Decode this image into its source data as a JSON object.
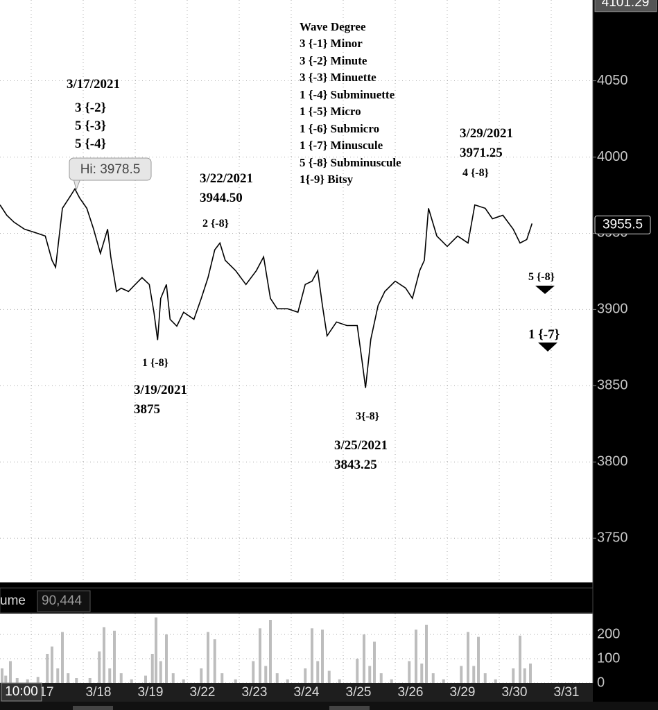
{
  "chart_data": [
    {
      "type": "line",
      "x": [
        -0.6,
        -0.47,
        -0.33,
        -0.13,
        0.07,
        0.27,
        0.4,
        0.47,
        0.6,
        0.73,
        0.84,
        0.93,
        1.07,
        1.2,
        1.33,
        1.47,
        1.53,
        1.64,
        1.73,
        1.87,
        2,
        2.13,
        2.27,
        2.36,
        2.43,
        2.49,
        2.6,
        2.67,
        2.8,
        2.93,
        3.13,
        3.27,
        3.4,
        3.53,
        3.63,
        3.73,
        3.93,
        4.13,
        4.33,
        4.47,
        4.6,
        4.73,
        4.93,
        5.13,
        5.27,
        5.4,
        5.51,
        5.6,
        5.69,
        5.87,
        6.07,
        6.27,
        6.36,
        6.43,
        6.53,
        6.67,
        6.8,
        7,
        7.2,
        7.33,
        7.47,
        7.56,
        7.64,
        7.8,
        8,
        8.2,
        8.4,
        8.53,
        8.73,
        8.87,
        9.07,
        9.27,
        9.4,
        9.53,
        9.63
      ],
      "values": [
        3968.6,
        3961.8,
        3957.3,
        3952.7,
        3950.5,
        3948.2,
        3932.3,
        3927.7,
        3966.4,
        3973.2,
        3979.1,
        3973.2,
        3966.4,
        3952.7,
        3936.8,
        3952.7,
        3934.5,
        3911.8,
        3914,
        3911.8,
        3916.4,
        3920.9,
        3916.4,
        3898.2,
        3880,
        3907.3,
        3916.4,
        3893.6,
        3889.1,
        3898.2,
        3893.6,
        3907.3,
        3920.9,
        3939.1,
        3943.6,
        3932.3,
        3925.5,
        3916.4,
        3925.5,
        3934.5,
        3907.3,
        3900.5,
        3900.5,
        3898.2,
        3916.4,
        3918.6,
        3925.5,
        3902.7,
        3882.7,
        3891.8,
        3889.5,
        3889.5,
        3866.8,
        3848.6,
        3880.5,
        3902.7,
        3911.8,
        3918.6,
        3914.1,
        3907.3,
        3925.5,
        3932.3,
        3966.4,
        3948.2,
        3941.4,
        3948.2,
        3943.6,
        3968.6,
        3966.4,
        3959.5,
        3961.8,
        3952.7,
        3943.6,
        3945.9,
        3956.4
      ],
      "color": "#000000",
      "xlim": [
        -0.6,
        10.8
      ],
      "ylim": [
        3721,
        4103
      ],
      "yticks": [
        3750,
        3800,
        3850,
        3900,
        3950,
        4000,
        4050
      ],
      "grid": true,
      "last_price": 3955.5,
      "scale_top": 4101.29,
      "high_marker": {
        "value": 3978.5,
        "label": "Hi: 3978.5"
      },
      "annotations": [
        "3/17/2021",
        "3 {-2}",
        "5 {-3}",
        "5 {-4}",
        "3/22/2021",
        "3944.50",
        "2 {-8}",
        "1 {-8}",
        "3/19/2021",
        "3875",
        "Wave Degree",
        "3 {-1} Minor",
        "3 {-2} Minute",
        "3 {-3} Minuette",
        "1 {-4} Subminuette",
        "1 {-5} Micro",
        "1 {-6} Submicro",
        "1 {-7} Minuscule",
        "5 {-8} Subminuscule",
        "1{-9} Bitsy",
        "3/29/2021",
        "3971.25",
        "4 {-8}",
        "3{-8}",
        "3/25/2021",
        "3843.25",
        "5 {-8}",
        "1 {-7}"
      ]
    },
    {
      "type": "bar",
      "title": "ume",
      "last_value": "90,444",
      "x": [
        -0.56,
        -0.49,
        -0.4,
        -0.27,
        -0.07,
        0.13,
        0.31,
        0.4,
        0.51,
        0.6,
        0.71,
        0.87,
        1.13,
        1.31,
        1.4,
        1.51,
        1.6,
        1.73,
        1.93,
        2.2,
        2.33,
        2.4,
        2.49,
        2.6,
        2.73,
        2.93,
        3.27,
        3.4,
        3.53,
        3.67,
        3.93,
        4.27,
        4.4,
        4.51,
        4.6,
        4.73,
        4.93,
        5.27,
        5.4,
        5.51,
        5.6,
        5.73,
        5.93,
        6.27,
        6.4,
        6.51,
        6.6,
        6.73,
        6.93,
        7.27,
        7.4,
        7.51,
        7.6,
        7.73,
        7.93,
        8.27,
        8.4,
        8.51,
        8.6,
        8.73,
        8.93,
        9.27,
        9.4,
        9.49,
        9.6
      ],
      "values": [
        60,
        30,
        90,
        20,
        15,
        25,
        120,
        150,
        60,
        210,
        40,
        20,
        20,
        130,
        230,
        60,
        215,
        40,
        15,
        30,
        120,
        270,
        90,
        200,
        40,
        15,
        60,
        210,
        180,
        40,
        15,
        90,
        225,
        70,
        260,
        40,
        15,
        60,
        225,
        90,
        220,
        50,
        15,
        100,
        200,
        70,
        170,
        40,
        15,
        90,
        220,
        80,
        240,
        40,
        15,
        70,
        210,
        70,
        190,
        40,
        15,
        60,
        195,
        60,
        80
      ],
      "color": "#bdbdbd",
      "xlim": [
        -0.6,
        10.8
      ],
      "xticks": [
        {
          "value": 0,
          "label": "17"
        },
        {
          "value": 1,
          "label": "3/18"
        },
        {
          "value": 2,
          "label": "3/19"
        },
        {
          "value": 3,
          "label": "3/22"
        },
        {
          "value": 4,
          "label": "3/23"
        },
        {
          "value": 5,
          "label": "3/24"
        },
        {
          "value": 6,
          "label": "3/25"
        },
        {
          "value": 7,
          "label": "3/26"
        },
        {
          "value": 8,
          "label": "3/29"
        },
        {
          "value": 9,
          "label": "3/30"
        },
        {
          "value": 10,
          "label": "3/31"
        }
      ],
      "ylim": [
        0,
        280
      ],
      "yticks": [
        0,
        100,
        200
      ],
      "grid": true
    }
  ],
  "ui": {
    "time_box": "10:00"
  }
}
